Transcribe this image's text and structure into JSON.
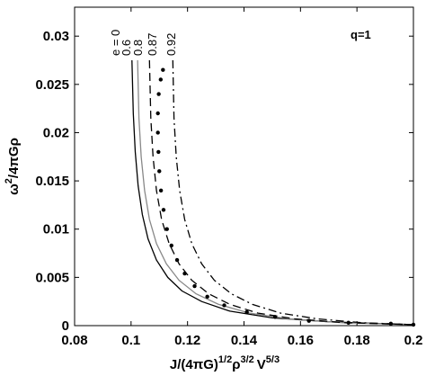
{
  "chart_data": {
    "type": "line",
    "xlabel": {
      "base": "J/(4πG)",
      "sup1": "1/2",
      "mid": "ρ",
      "sup2": "3/2",
      "mid2": "V",
      "sup3": "5/3"
    },
    "ylabel": {
      "base": "ω",
      "sup": "2",
      "rest": "/4πGρ"
    },
    "annotation": "q=1",
    "xlim": [
      0.08,
      0.2
    ],
    "ylim": [
      0,
      0.033
    ],
    "xticks": [
      "0.08",
      "0.1",
      "0.12",
      "0.14",
      "0.16",
      "0.18",
      "0.2"
    ],
    "xtick_values": [
      0.08,
      0.1,
      0.12,
      0.14,
      0.16,
      0.18,
      0.2
    ],
    "yticks": [
      "0",
      "0.005",
      "0.01",
      "0.015",
      "0.02",
      "0.025",
      "0.03"
    ],
    "ytick_values": [
      0,
      0.005,
      0.01,
      0.015,
      0.02,
      0.025,
      0.03
    ],
    "grid": false,
    "series": [
      {
        "name": "e = 0",
        "style": "solid",
        "color": "#000000",
        "x": [
          0.1003,
          0.1008,
          0.1015,
          0.1025,
          0.104,
          0.106,
          0.109,
          0.113,
          0.118,
          0.125,
          0.135,
          0.15,
          0.17,
          0.19,
          0.2
        ],
        "y": [
          0.0275,
          0.022,
          0.018,
          0.0145,
          0.0115,
          0.009,
          0.0068,
          0.005,
          0.0036,
          0.0025,
          0.0015,
          0.0008,
          0.0004,
          0.0002,
          0.0001
        ]
      },
      {
        "name": "0.6",
        "style": "solid",
        "color": "#888888",
        "x": [
          0.1023,
          0.1028,
          0.1036,
          0.1048,
          0.1065,
          0.109,
          0.1125,
          0.117,
          0.123,
          0.131,
          0.142,
          0.156,
          0.175,
          0.2
        ],
        "y": [
          0.0275,
          0.0215,
          0.0175,
          0.014,
          0.011,
          0.0085,
          0.0064,
          0.0047,
          0.0033,
          0.0022,
          0.0013,
          0.0007,
          0.0003,
          0.0001
        ]
      },
      {
        "name": "0.8",
        "style": "dashed",
        "color": "#000000",
        "x": [
          0.1065,
          0.107,
          0.1078,
          0.109,
          0.1108,
          0.1135,
          0.117,
          0.1215,
          0.1275,
          0.135,
          0.145,
          0.158,
          0.176,
          0.2
        ],
        "y": [
          0.0275,
          0.0215,
          0.0175,
          0.014,
          0.011,
          0.0085,
          0.0064,
          0.0047,
          0.0033,
          0.0022,
          0.0013,
          0.0007,
          0.0003,
          0.0001
        ]
      },
      {
        "name": "0.87",
        "style": "dotted",
        "color": "#000000",
        "x": [
          0.1113,
          0.1105,
          0.1098,
          0.1095,
          0.1095,
          0.1097,
          0.11,
          0.1106,
          0.1115,
          0.1127,
          0.1143,
          0.1163,
          0.119,
          0.1225,
          0.127,
          0.133,
          0.141,
          0.151,
          0.163,
          0.177,
          0.192,
          0.2
        ],
        "y": [
          0.0265,
          0.0255,
          0.024,
          0.022,
          0.02,
          0.018,
          0.016,
          0.014,
          0.012,
          0.01,
          0.0083,
          0.0068,
          0.0054,
          0.0041,
          0.003,
          0.0021,
          0.0014,
          0.0009,
          0.0005,
          0.0003,
          0.0002,
          0.0001
        ]
      },
      {
        "name": "0.92",
        "style": "dashdot",
        "color": "#000000",
        "x": [
          0.1148,
          0.1152,
          0.116,
          0.1172,
          0.119,
          0.1215,
          0.125,
          0.1295,
          0.1355,
          0.143,
          0.153,
          0.166,
          0.182,
          0.2
        ],
        "y": [
          0.0275,
          0.0215,
          0.0175,
          0.014,
          0.011,
          0.0085,
          0.0064,
          0.0047,
          0.0033,
          0.0022,
          0.0013,
          0.0007,
          0.0003,
          0.0001
        ]
      }
    ],
    "curve_labels": [
      "e = 0",
      "0.6",
      "0.8",
      "0.87",
      "0.92"
    ]
  }
}
